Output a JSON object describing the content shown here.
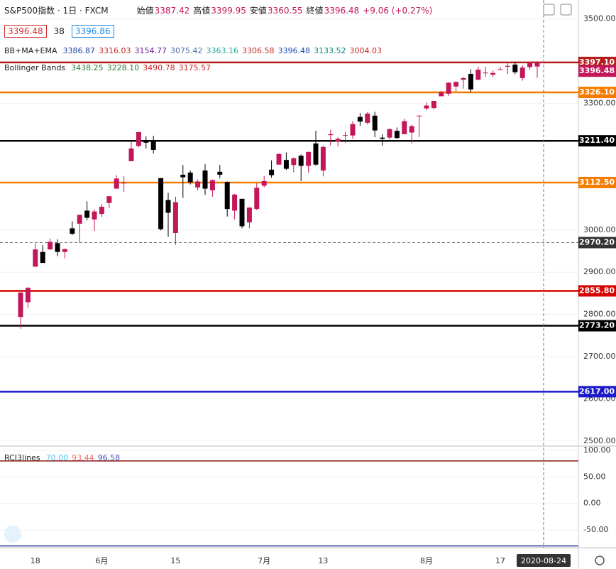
{
  "header": {
    "symbol": "S&P500指数 · 1日 · FXCM",
    "ohlc": [
      {
        "name": "始値",
        "value": "3387.42"
      },
      {
        "name": "高値",
        "value": "3399.95"
      },
      {
        "name": "安値",
        "value": "3360.55"
      },
      {
        "name": "終値",
        "value": "3396.48"
      }
    ],
    "change": "+9.06 (+0.27%)",
    "inputs": [
      {
        "value": "3396.48",
        "color": "#d32f2f"
      },
      {
        "value": "38",
        "color": "#ffffff"
      },
      {
        "value": "3396.86",
        "color": "#1e88e5"
      }
    ],
    "indicators": [
      {
        "name": "BB+MA+EMA",
        "values": [
          {
            "value": "3386.87",
            "color": "#1a3fa0"
          },
          {
            "value": "3316.03",
            "color": "#c62828"
          },
          {
            "value": "3154.77",
            "color": "#6a1b9a"
          },
          {
            "value": "3075.42",
            "color": "#4a6fa5"
          },
          {
            "value": "3363.16",
            "color": "#26a69a"
          },
          {
            "value": "3306.58",
            "color": "#c62828"
          },
          {
            "value": "3396.48",
            "color": "#1e4bb8"
          },
          {
            "value": "3133.52",
            "color": "#00897b"
          },
          {
            "value": "3004.03",
            "color": "#c62828"
          }
        ]
      },
      {
        "name": "Bollinger Bands",
        "values": [
          {
            "value": "3438.25",
            "color": "#2e7d32"
          },
          {
            "value": "3228.10",
            "color": "#2e7d32"
          },
          {
            "value": "3490.78",
            "color": "#c62828"
          },
          {
            "value": "3175.57",
            "color": "#c62828"
          }
        ]
      }
    ]
  },
  "chart_data": {
    "type": "candlestick",
    "categories": [
      null,
      null,
      "18",
      null,
      null,
      null,
      null,
      null,
      null,
      null,
      null,
      "6月",
      null,
      null,
      null,
      null,
      null,
      null,
      null,
      null,
      null,
      "15",
      null,
      null,
      null,
      null,
      null,
      null,
      null,
      null,
      null,
      null,
      null,
      "7月",
      null,
      null,
      null,
      null,
      null,
      null,
      null,
      "13",
      null,
      null,
      null,
      null,
      null,
      null,
      null,
      null,
      null,
      null,
      null,
      null,
      null,
      "8月",
      null,
      null,
      null,
      null,
      null,
      null,
      null,
      null,
      null,
      "17",
      null,
      null,
      null,
      null,
      "2020-08-24"
    ],
    "open": [
      2794,
      2829,
      2913,
      2948,
      2954,
      2969,
      2948,
      3004,
      3015,
      3046,
      3025,
      3038,
      3064,
      3098,
      3111,
      3163,
      3199,
      3213,
      3213,
      3123,
      3071,
      2993,
      3131,
      3136,
      3101,
      3141,
      3094,
      3138,
      3114,
      3046,
      3074,
      3018,
      3050,
      3105,
      3143,
      3155,
      3166,
      3154,
      3176,
      3152,
      3205,
      3141,
      3225,
      3209,
      3224,
      3224,
      3268,
      3254,
      3271,
      3219,
      3219,
      3235,
      3227,
      3231,
      3270,
      3288,
      3289,
      3317,
      3323,
      3340,
      3356,
      3370,
      3356,
      3372,
      3368,
      3380,
      3387,
      3392,
      3360,
      3386,
      3387.42
    ],
    "high": [
      2852,
      2865,
      2968,
      2964,
      2980,
      2978,
      2956,
      3021,
      3036,
      3068,
      3049,
      3062,
      3081,
      3130,
      3128,
      3211,
      3233,
      3222,
      3223,
      3123,
      3088,
      3079,
      3154,
      3141,
      3120,
      3156,
      3120,
      3154,
      3115,
      3086,
      3074,
      3054,
      3111,
      3128,
      3165,
      3182,
      3184,
      3172,
      3179,
      3186,
      3235,
      3200,
      3238,
      3220,
      3233,
      3258,
      3277,
      3279,
      3280,
      3227,
      3241,
      3243,
      3264,
      3250,
      3272,
      3302,
      3306,
      3330,
      3351,
      3352,
      3363,
      3381,
      3387,
      3387,
      3378,
      3387,
      3396,
      3399,
      3390,
      3399,
      3399.95
    ],
    "low": [
      2766,
      2816,
      2913,
      2922,
      2953,
      2938,
      2933,
      2988,
      2970,
      3023,
      2998,
      3031,
      3052,
      3098,
      3090,
      3163,
      3196,
      3193,
      3181,
      2999,
      2984,
      2965,
      3076,
      3108,
      3094,
      3083,
      3079,
      3123,
      3032,
      3025,
      3004,
      3004,
      3047,
      3101,
      3124,
      3155,
      3142,
      3137,
      3116,
      3136,
      3152,
      3127,
      3200,
      3198,
      3206,
      3216,
      3247,
      3250,
      3220,
      3200,
      3214,
      3216,
      3227,
      3205,
      3220,
      3284,
      3286,
      3317,
      3318,
      3328,
      3335,
      3326,
      3355,
      3363,
      3362,
      3379,
      3370,
      3369,
      3354,
      3380,
      3360.55
    ],
    "close": [
      2852,
      2863,
      2954,
      2922,
      2972,
      2948,
      2955,
      2991,
      3036,
      3029,
      3044,
      3055,
      3080,
      3122,
      3112,
      3193,
      3232,
      3207,
      3190,
      3002,
      3041,
      3066,
      3125,
      3113,
      3115,
      3098,
      3118,
      3131,
      3050,
      3084,
      3009,
      3053,
      3100,
      3116,
      3130,
      3180,
      3145,
      3170,
      3152,
      3185,
      3155,
      3197,
      3227,
      3216,
      3225,
      3251,
      3257,
      3276,
      3236,
      3216,
      3239,
      3218,
      3258,
      3246,
      3271,
      3295,
      3306,
      3327,
      3349,
      3351,
      3360,
      3333,
      3380,
      3373,
      3372,
      3381,
      3389,
      3374,
      3385,
      3397,
      3396.48
    ],
    "up_color": "#c2185b",
    "down_color": "#000000",
    "ylim": [
      2488,
      3545
    ],
    "yticks": [
      {
        "value": 3500,
        "label": "3500.00"
      },
      {
        "value": 3300,
        "label": "3300.00"
      },
      {
        "value": 3000,
        "label": "3000.00"
      },
      {
        "value": 2900,
        "label": "2900.00"
      },
      {
        "value": 2800,
        "label": "2800.00"
      },
      {
        "value": 2700,
        "label": "2700.00"
      },
      {
        "value": 2600,
        "label": "2600.00"
      },
      {
        "value": 2500,
        "label": "2500.00"
      }
    ],
    "levels": [
      {
        "value": 3397.1,
        "label": "3397.10",
        "color": "#b71c1c"
      },
      {
        "value": 3326.1,
        "label": "3326.10",
        "color": "#f57c00"
      },
      {
        "value": 3211.4,
        "label": "3211.40",
        "color": "#000000"
      },
      {
        "value": 3112.5,
        "label": "3112.50",
        "color": "#f57c00"
      },
      {
        "value": 2855.8,
        "label": "2855.80",
        "color": "#d50000"
      },
      {
        "value": 2773.2,
        "label": "2773.20",
        "color": "#000000"
      },
      {
        "value": 2617,
        "label": "2617.00",
        "color": "#1a1acc"
      }
    ],
    "crosshair": {
      "value": 2970.2,
      "label": "2970.20"
    },
    "rci": {
      "name": "RCI3lines",
      "values": [
        {
          "value": "70.00",
          "color": "#4fc3f7"
        },
        {
          "value": "93.44",
          "color": "#e57373"
        },
        {
          "value": "96.58",
          "color": "#3f51b5"
        }
      ],
      "ylim": [
        -82,
        108
      ],
      "yticks": [
        {
          "value": 100,
          "label": "100.00"
        },
        {
          "value": 50,
          "label": "50.00"
        },
        {
          "value": 0,
          "label": "0.00"
        },
        {
          "value": -50,
          "label": "-50.00"
        }
      ],
      "levels": [
        {
          "value": 80,
          "color": "#8b1a1a"
        },
        {
          "value": -80,
          "color": "#283593"
        }
      ]
    }
  }
}
